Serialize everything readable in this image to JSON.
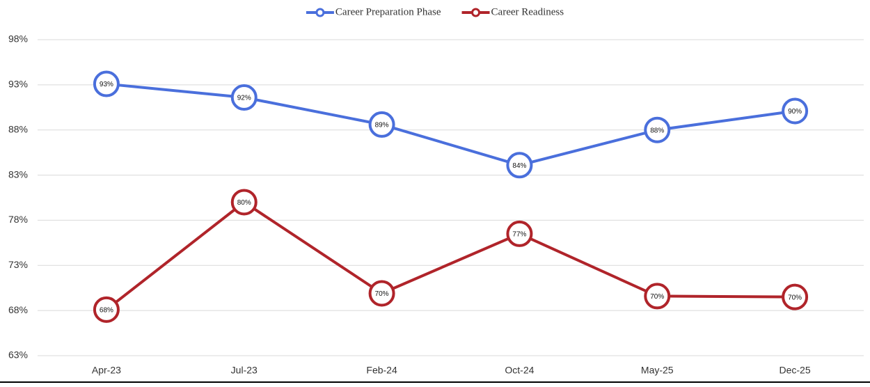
{
  "chart_data": {
    "type": "line",
    "categories": [
      "Apr-23",
      "Jul-23",
      "Feb-24",
      "Oct-24",
      "May-25",
      "Dec-25"
    ],
    "series": [
      {
        "name": "Career Preparation Phase",
        "color": "#4a6fdc",
        "values": [
          93.1,
          91.6,
          88.6,
          84.1,
          88.0,
          90.1
        ],
        "value_labels": [
          "93%",
          "92%",
          "89%",
          "84%",
          "88%",
          "90%"
        ]
      },
      {
        "name": "Career Readiness",
        "color": "#b0242a",
        "values": [
          68.1,
          80.0,
          69.9,
          76.5,
          69.6,
          69.5
        ],
        "value_labels": [
          "68%",
          "80%",
          "70%",
          "77%",
          "70%",
          "70%"
        ]
      }
    ],
    "ylim": [
      63,
      98
    ],
    "yticks": [
      {
        "value": 63,
        "label": "63%"
      },
      {
        "value": 68,
        "label": "68%"
      },
      {
        "value": 73,
        "label": "73%"
      },
      {
        "value": 78,
        "label": "78%"
      },
      {
        "value": 83,
        "label": "83%"
      },
      {
        "value": 88,
        "label": "88%"
      },
      {
        "value": 93,
        "label": "93%"
      },
      {
        "value": 98,
        "label": "98%"
      }
    ],
    "grid": true,
    "legend": "top"
  }
}
